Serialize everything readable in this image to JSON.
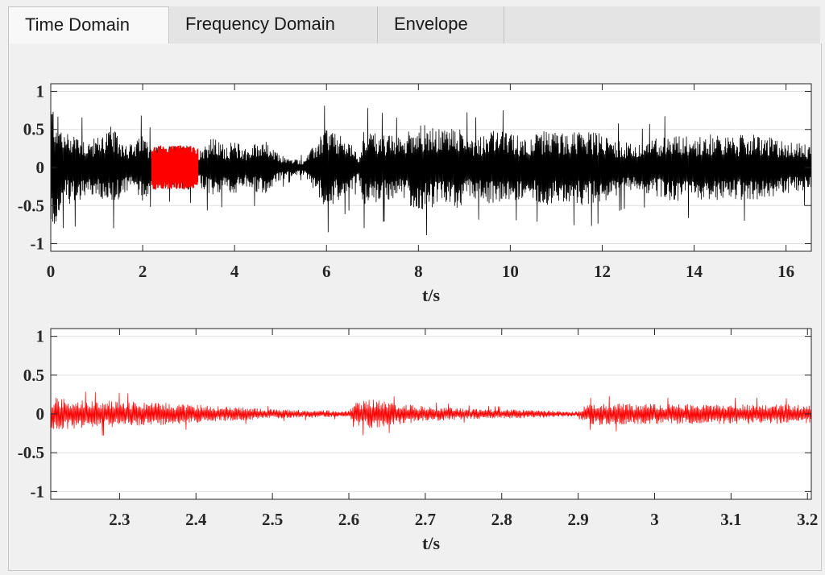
{
  "tabs": [
    {
      "label": "Time Domain",
      "active": true
    },
    {
      "label": "Frequency Domain",
      "active": false
    },
    {
      "label": "Envelope",
      "active": false
    }
  ],
  "colors": {
    "full_signal": "#000000",
    "zoom_signal": "#ff0000",
    "grid": "#e0e0e0"
  },
  "chart_data": [
    {
      "type": "line",
      "xlabel": "t/s",
      "ylabel": "",
      "xlim": [
        0,
        16.55
      ],
      "ylim": [
        -1.1,
        1.1
      ],
      "xticks": [
        0,
        2,
        4,
        6,
        8,
        10,
        12,
        14,
        16
      ],
      "xtick_labels": [
        "0",
        "2",
        "4",
        "6",
        "8",
        "10",
        "12",
        "14",
        "16"
      ],
      "yticks": [
        1,
        0.5,
        0,
        -0.5,
        -1
      ],
      "ytick_labels": [
        "1",
        "0.5",
        "0",
        "-0.5",
        "-1"
      ],
      "grid": "horizontal",
      "highlighted_range": [
        2.2,
        3.2
      ],
      "envelope": {
        "x": [
          0,
          0.05,
          0.3,
          0.5,
          0.8,
          1.0,
          1.3,
          1.5,
          1.8,
          2.0,
          2.2,
          2.6,
          3.0,
          3.2,
          3.5,
          3.8,
          4.0,
          4.3,
          4.6,
          4.9,
          5.2,
          5.5,
          5.8,
          6.0,
          6.2,
          6.5,
          6.7,
          6.8,
          7.2,
          7.6,
          8.0,
          8.4,
          8.8,
          9.2,
          9.6,
          10.0,
          10.4,
          10.8,
          11.2,
          11.6,
          12.0,
          12.4,
          12.8,
          13.2,
          13.6,
          14.0,
          14.4,
          14.8,
          15.2,
          15.6,
          16.0,
          16.55
        ],
        "y": [
          0.9,
          0.85,
          0.45,
          0.5,
          0.35,
          0.4,
          0.55,
          0.4,
          0.3,
          0.45,
          0.3,
          0.28,
          0.3,
          0.25,
          0.4,
          0.3,
          0.35,
          0.25,
          0.4,
          0.2,
          0.12,
          0.1,
          0.35,
          0.55,
          0.45,
          0.35,
          0.15,
          0.5,
          0.45,
          0.4,
          0.6,
          0.5,
          0.55,
          0.4,
          0.5,
          0.45,
          0.4,
          0.5,
          0.45,
          0.5,
          0.45,
          0.35,
          0.3,
          0.4,
          0.45,
          0.4,
          0.45,
          0.4,
          0.45,
          0.4,
          0.35,
          0.3
        ]
      }
    },
    {
      "type": "line",
      "xlabel": "t/s",
      "ylabel": "",
      "xlim": [
        2.21,
        3.205
      ],
      "ylim": [
        -1.1,
        1.1
      ],
      "xticks": [
        2.3,
        2.4,
        2.5,
        2.6,
        2.7,
        2.8,
        2.9,
        3,
        3.1,
        3.2
      ],
      "xtick_labels": [
        "2.3",
        "2.4",
        "2.5",
        "2.6",
        "2.7",
        "2.8",
        "2.9",
        "3",
        "3.1",
        "3.2"
      ],
      "yticks": [
        1,
        0.5,
        0,
        -0.5,
        -1
      ],
      "ytick_labels": [
        "1",
        "0.5",
        "0",
        "-0.5",
        "-1"
      ],
      "grid": "horizontal",
      "envelope": {
        "x": [
          2.21,
          2.25,
          2.3,
          2.35,
          2.4,
          2.45,
          2.5,
          2.55,
          2.6,
          2.61,
          2.63,
          2.66,
          2.7,
          2.75,
          2.8,
          2.85,
          2.9,
          2.91,
          2.93,
          2.97,
          3.0,
          3.05,
          3.1,
          3.15,
          3.205
        ],
        "y": [
          0.22,
          0.18,
          0.17,
          0.15,
          0.12,
          0.09,
          0.06,
          0.05,
          0.04,
          0.15,
          0.2,
          0.14,
          0.1,
          0.07,
          0.06,
          0.05,
          0.03,
          0.12,
          0.15,
          0.13,
          0.13,
          0.13,
          0.13,
          0.13,
          0.12
        ]
      }
    }
  ]
}
